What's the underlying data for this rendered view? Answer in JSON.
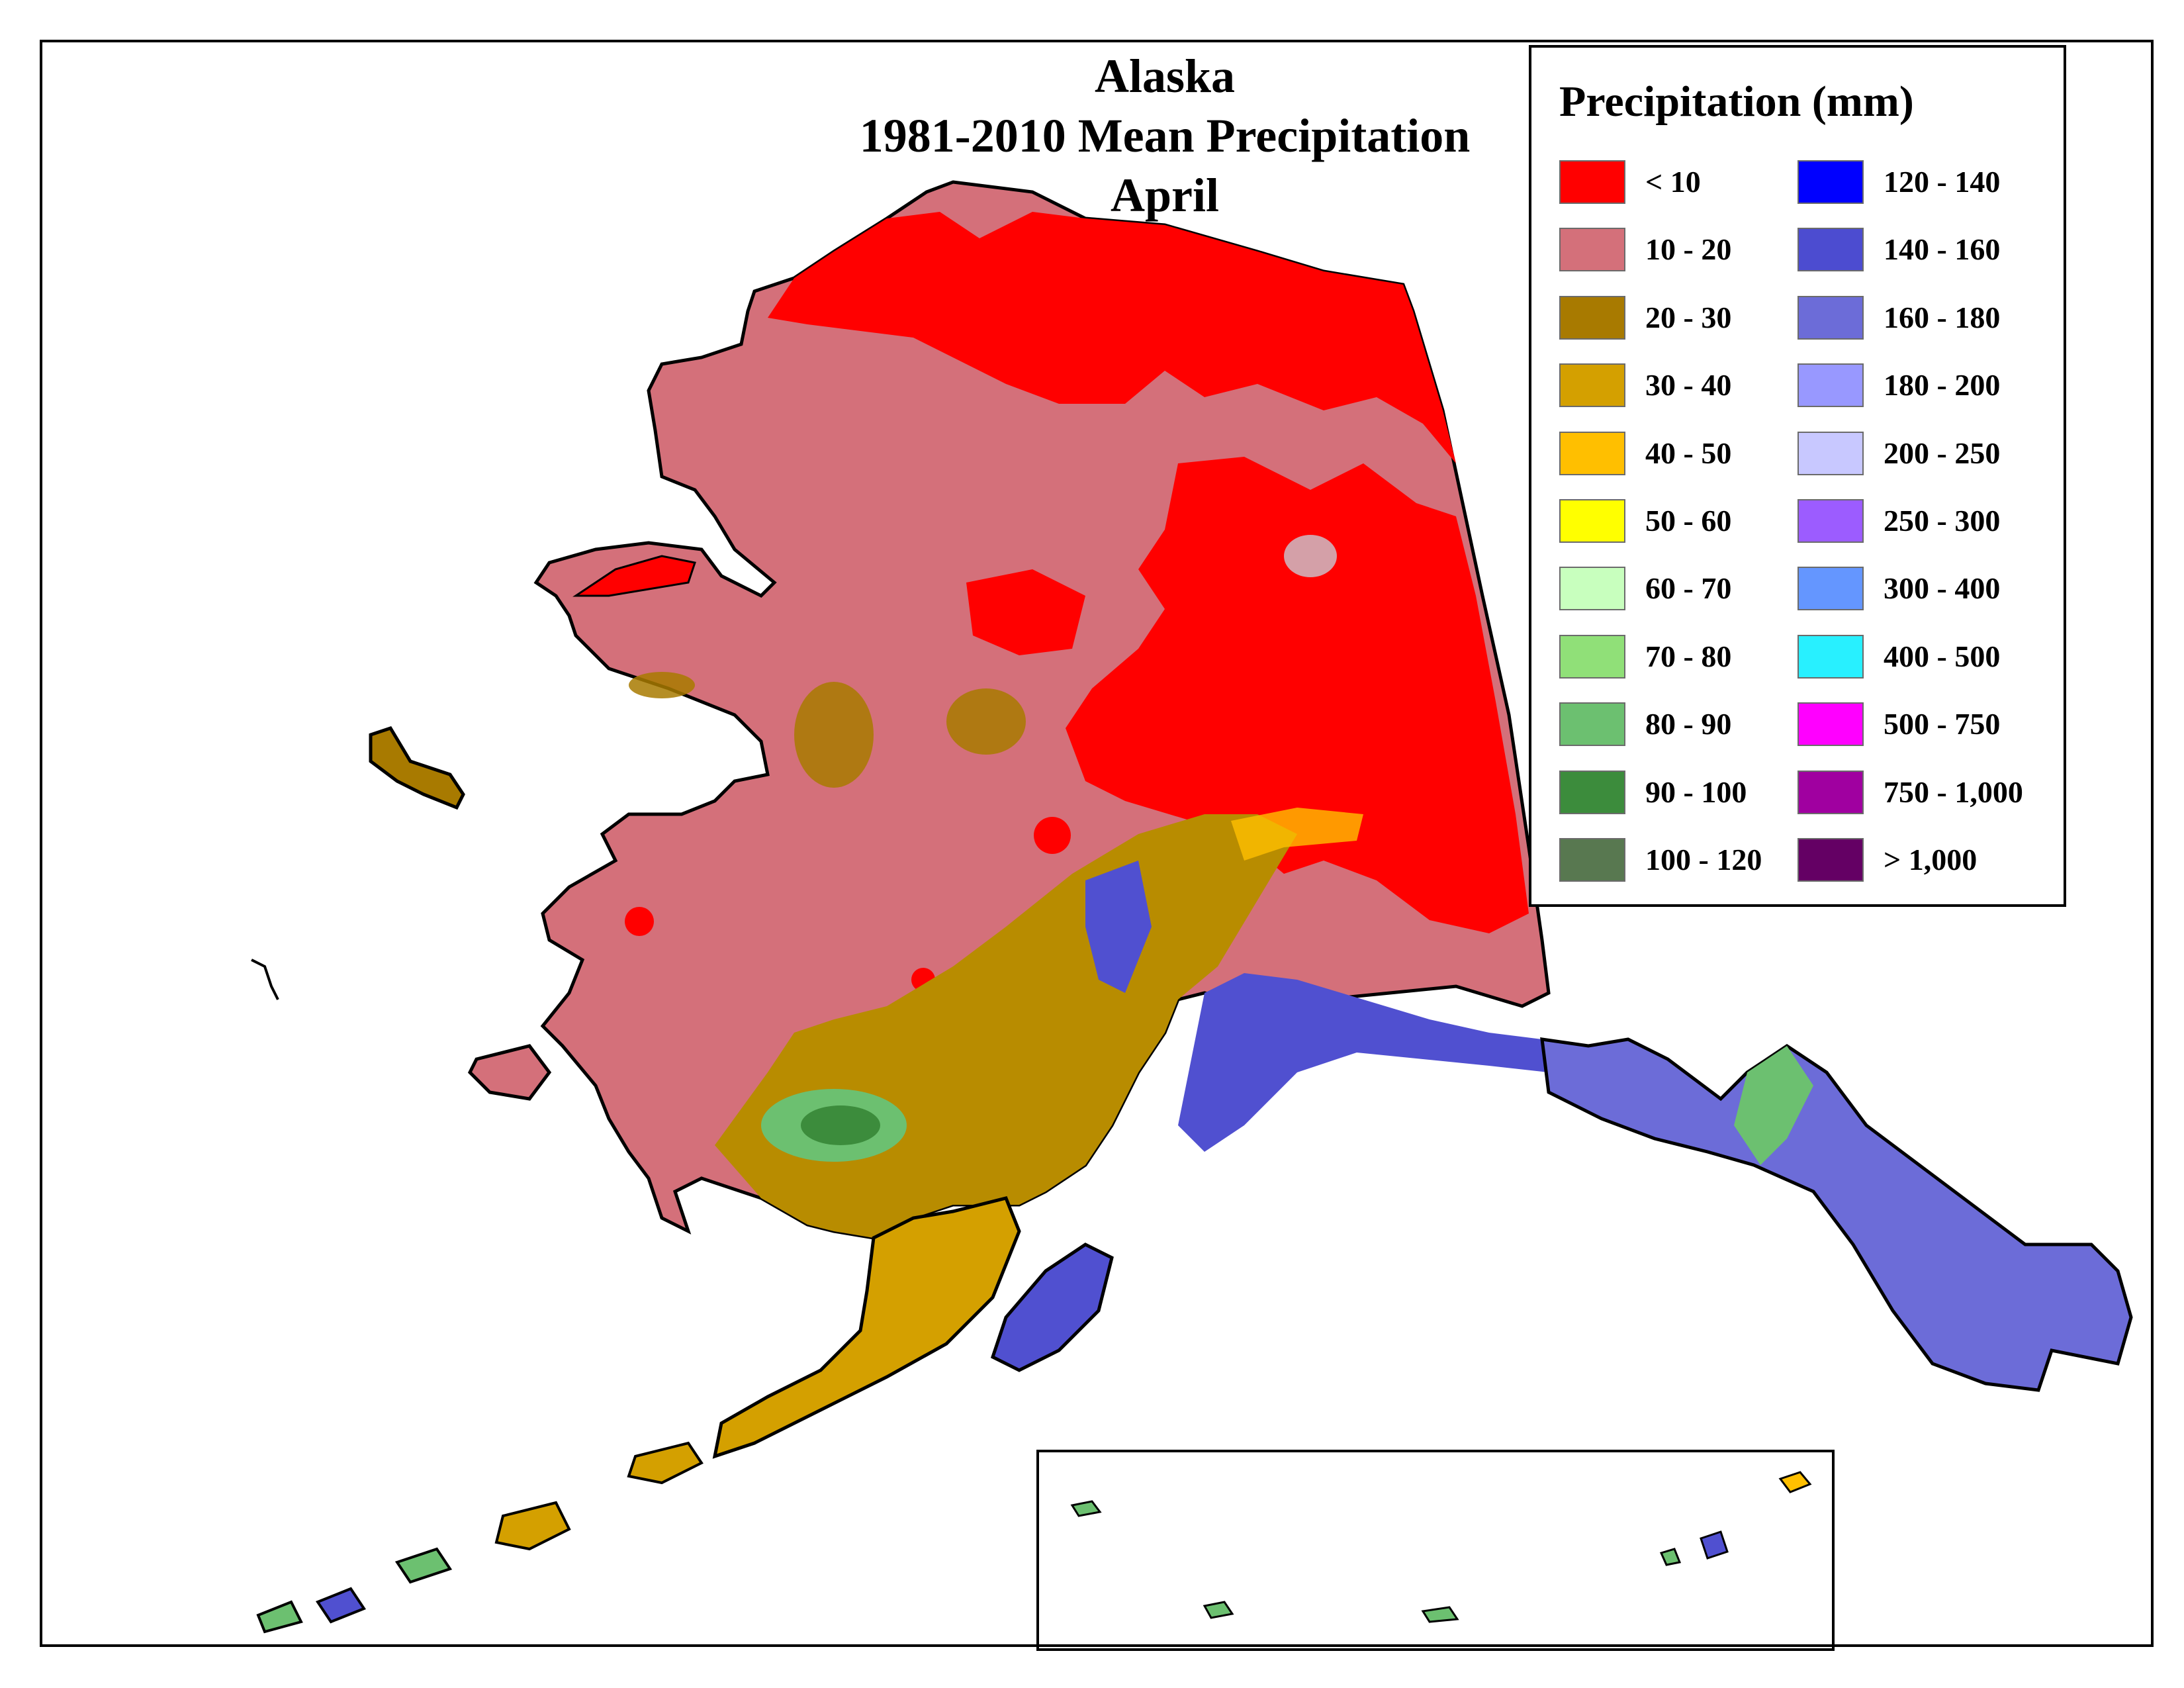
{
  "title": {
    "line1": "Alaska",
    "line2": "1981-2010 Mean Precipitation",
    "line3": "April"
  },
  "legend": {
    "title": "Precipitation (mm)",
    "items": [
      {
        "label": "< 10",
        "color": "#ff0000"
      },
      {
        "label": "10 - 20",
        "color": "#d4707a"
      },
      {
        "label": "20 - 30",
        "color": "#a87a00"
      },
      {
        "label": "30 - 40",
        "color": "#d4a000"
      },
      {
        "label": "40 - 50",
        "color": "#ffbf00"
      },
      {
        "label": "50 - 60",
        "color": "#ffff00"
      },
      {
        "label": "60 - 70",
        "color": "#c8ffbe"
      },
      {
        "label": "70 - 80",
        "color": "#90e078"
      },
      {
        "label": "80 - 90",
        "color": "#6cc070"
      },
      {
        "label": "90 - 100",
        "color": "#3c8c3c"
      },
      {
        "label": "100 - 120",
        "color": "#587850"
      },
      {
        "label": "120 - 140",
        "color": "#0000ff"
      },
      {
        "label": "140 - 160",
        "color": "#4c4cd0"
      },
      {
        "label": "160 - 180",
        "color": "#6c6cd8"
      },
      {
        "label": "180 - 200",
        "color": "#9898ff"
      },
      {
        "label": "200 - 250",
        "color": "#c8c8ff"
      },
      {
        "label": "250 - 300",
        "color": "#9c5cff"
      },
      {
        "label": "300 - 400",
        "color": "#6496ff"
      },
      {
        "label": "400 - 500",
        "color": "#28f0ff"
      },
      {
        "label": "500 - 750",
        "color": "#ff00ff"
      },
      {
        "label": "750 - 1,000",
        "color": "#a000a0"
      },
      {
        "label": "> 1,000",
        "color": "#640064"
      }
    ]
  }
}
